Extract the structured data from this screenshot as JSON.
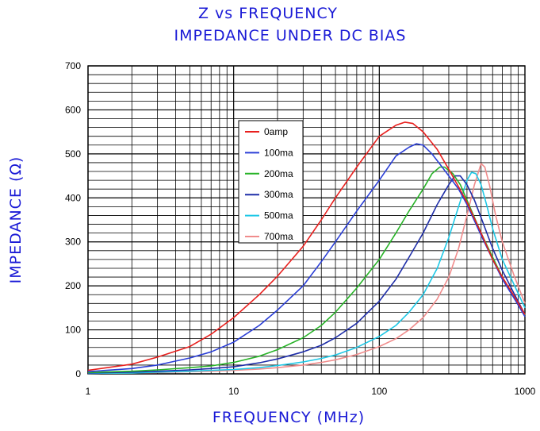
{
  "chart_data": {
    "type": "line",
    "title": "Z vs FREQUENCY",
    "subtitle": "IMPEDANCE UNDER DC BIAS",
    "xlabel": "FREQUENCY (MHz)",
    "ylabel": "IMPEDANCE (Ω)",
    "xscale": "log",
    "xlim": [
      1,
      1000
    ],
    "ylim": [
      0,
      700
    ],
    "grid": true,
    "legend_position": "upper-left-center",
    "x_tick_labels": [
      "1",
      "10",
      "100",
      "1000"
    ],
    "y_tick_labels": [
      "0",
      "100",
      "200",
      "300",
      "400",
      "500",
      "600",
      "700"
    ],
    "series": [
      {
        "name": "0amp",
        "color": "#e8201e",
        "points": [
          [
            1,
            8
          ],
          [
            2,
            22
          ],
          [
            3,
            38
          ],
          [
            5,
            62
          ],
          [
            7,
            90
          ],
          [
            10,
            128
          ],
          [
            15,
            180
          ],
          [
            20,
            222
          ],
          [
            30,
            290
          ],
          [
            40,
            350
          ],
          [
            50,
            400
          ],
          [
            70,
            470
          ],
          [
            100,
            540
          ],
          [
            130,
            565
          ],
          [
            150,
            572
          ],
          [
            170,
            569
          ],
          [
            200,
            550
          ],
          [
            250,
            510
          ],
          [
            300,
            465
          ],
          [
            350,
            425
          ],
          [
            400,
            390
          ],
          [
            500,
            320
          ],
          [
            600,
            260
          ],
          [
            700,
            220
          ],
          [
            850,
            175
          ],
          [
            1000,
            135
          ]
        ]
      },
      {
        "name": "100ma",
        "color": "#2a3ed6",
        "points": [
          [
            1,
            5
          ],
          [
            2,
            12
          ],
          [
            3,
            20
          ],
          [
            5,
            36
          ],
          [
            7,
            50
          ],
          [
            10,
            72
          ],
          [
            15,
            110
          ],
          [
            20,
            145
          ],
          [
            30,
            200
          ],
          [
            40,
            255
          ],
          [
            50,
            300
          ],
          [
            70,
            370
          ],
          [
            100,
            440
          ],
          [
            130,
            495
          ],
          [
            160,
            515
          ],
          [
            180,
            523
          ],
          [
            200,
            520
          ],
          [
            230,
            500
          ],
          [
            270,
            470
          ],
          [
            300,
            450
          ],
          [
            350,
            420
          ],
          [
            400,
            385
          ],
          [
            500,
            315
          ],
          [
            600,
            260
          ],
          [
            700,
            215
          ],
          [
            850,
            170
          ],
          [
            1000,
            130
          ]
        ]
      },
      {
        "name": "200ma",
        "color": "#28b328",
        "points": [
          [
            1,
            3
          ],
          [
            2,
            6
          ],
          [
            3,
            9
          ],
          [
            5,
            14
          ],
          [
            7,
            18
          ],
          [
            10,
            26
          ],
          [
            15,
            40
          ],
          [
            20,
            55
          ],
          [
            30,
            82
          ],
          [
            40,
            110
          ],
          [
            50,
            140
          ],
          [
            70,
            195
          ],
          [
            100,
            260
          ],
          [
            130,
            320
          ],
          [
            160,
            370
          ],
          [
            200,
            420
          ],
          [
            230,
            455
          ],
          [
            260,
            470
          ],
          [
            280,
            470
          ],
          [
            320,
            455
          ],
          [
            360,
            430
          ],
          [
            400,
            395
          ],
          [
            500,
            320
          ],
          [
            600,
            265
          ],
          [
            700,
            220
          ],
          [
            850,
            172
          ],
          [
            1000,
            133
          ]
        ]
      },
      {
        "name": "300ma",
        "color": "#1f2ea8",
        "points": [
          [
            1,
            2
          ],
          [
            2,
            4
          ],
          [
            3,
            6
          ],
          [
            5,
            9
          ],
          [
            7,
            12
          ],
          [
            10,
            16
          ],
          [
            15,
            25
          ],
          [
            20,
            34
          ],
          [
            30,
            50
          ],
          [
            40,
            65
          ],
          [
            50,
            82
          ],
          [
            70,
            115
          ],
          [
            100,
            165
          ],
          [
            130,
            215
          ],
          [
            160,
            265
          ],
          [
            200,
            320
          ],
          [
            250,
            385
          ],
          [
            300,
            430
          ],
          [
            330,
            450
          ],
          [
            360,
            450
          ],
          [
            400,
            430
          ],
          [
            450,
            395
          ],
          [
            500,
            355
          ],
          [
            600,
            285
          ],
          [
            700,
            235
          ],
          [
            850,
            180
          ],
          [
            1000,
            135
          ]
        ]
      },
      {
        "name": "500ma",
        "color": "#1ec8e6",
        "points": [
          [
            1,
            1
          ],
          [
            2,
            2
          ],
          [
            3,
            4
          ],
          [
            5,
            6
          ],
          [
            7,
            8
          ],
          [
            10,
            10
          ],
          [
            15,
            14
          ],
          [
            20,
            19
          ],
          [
            30,
            27
          ],
          [
            40,
            35
          ],
          [
            50,
            43
          ],
          [
            70,
            60
          ],
          [
            100,
            85
          ],
          [
            130,
            110
          ],
          [
            160,
            140
          ],
          [
            200,
            180
          ],
          [
            250,
            240
          ],
          [
            300,
            310
          ],
          [
            350,
            380
          ],
          [
            400,
            440
          ],
          [
            430,
            458
          ],
          [
            460,
            455
          ],
          [
            500,
            430
          ],
          [
            550,
            380
          ],
          [
            600,
            330
          ],
          [
            700,
            260
          ],
          [
            850,
            200
          ],
          [
            1000,
            150
          ]
        ]
      },
      {
        "name": "700ma",
        "color": "#f08c8c",
        "points": [
          [
            1,
            1
          ],
          [
            2,
            2
          ],
          [
            3,
            3
          ],
          [
            5,
            5
          ],
          [
            7,
            6
          ],
          [
            10,
            8
          ],
          [
            15,
            11
          ],
          [
            20,
            14
          ],
          [
            30,
            20
          ],
          [
            40,
            26
          ],
          [
            50,
            32
          ],
          [
            70,
            44
          ],
          [
            100,
            62
          ],
          [
            130,
            80
          ],
          [
            160,
            100
          ],
          [
            200,
            128
          ],
          [
            250,
            170
          ],
          [
            300,
            220
          ],
          [
            350,
            285
          ],
          [
            400,
            360
          ],
          [
            450,
            430
          ],
          [
            500,
            478
          ],
          [
            530,
            470
          ],
          [
            570,
            430
          ],
          [
            630,
            360
          ],
          [
            700,
            300
          ],
          [
            850,
            220
          ],
          [
            1000,
            160
          ]
        ]
      }
    ]
  }
}
